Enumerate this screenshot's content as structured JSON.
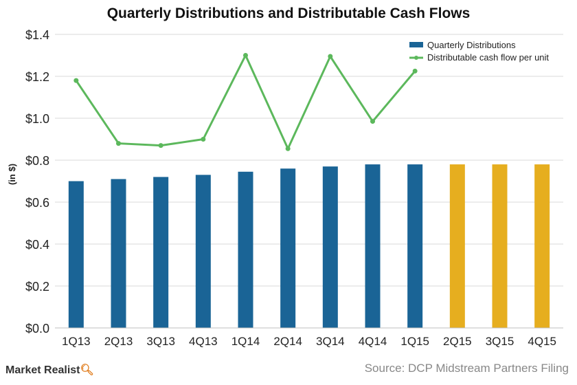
{
  "chart_data": {
    "type": "bar",
    "title": "Quarterly Distributions and Distributable Cash Flows",
    "ylabel": "(in $)",
    "ylim": [
      0,
      1.4
    ],
    "yticks": [
      0.0,
      0.2,
      0.4,
      0.6,
      0.8,
      1.0,
      1.2,
      1.4
    ],
    "ytick_labels": [
      "$0.0",
      "$0.2",
      "$0.4",
      "$0.6",
      "$0.8",
      "$1.0",
      "$1.2",
      "$1.4"
    ],
    "categories": [
      "1Q13",
      "2Q13",
      "3Q13",
      "4Q13",
      "1Q14",
      "2Q14",
      "3Q14",
      "4Q14",
      "1Q15",
      "2Q15",
      "3Q15",
      "4Q15"
    ],
    "grid": true,
    "legend_position": "top-right",
    "series": [
      {
        "name": "Quarterly Distributions",
        "type": "bar",
        "values": [
          0.7,
          0.71,
          0.72,
          0.73,
          0.745,
          0.76,
          0.77,
          0.78,
          0.78,
          0.78,
          0.78,
          0.78
        ],
        "color": "#1a6496",
        "projected_color": "#e6ae1f",
        "projected_from_index": 9
      },
      {
        "name": "Distributable cash flow per unit",
        "type": "line",
        "values": [
          1.18,
          0.88,
          0.87,
          0.9,
          1.3,
          0.855,
          1.295,
          0.985,
          1.225,
          null,
          null,
          null
        ],
        "color": "#5cb85c"
      }
    ]
  },
  "brand": {
    "name": "Market Realist",
    "icon": "magnifier-icon"
  },
  "source": "Source: DCP Midstream Partners Filing"
}
